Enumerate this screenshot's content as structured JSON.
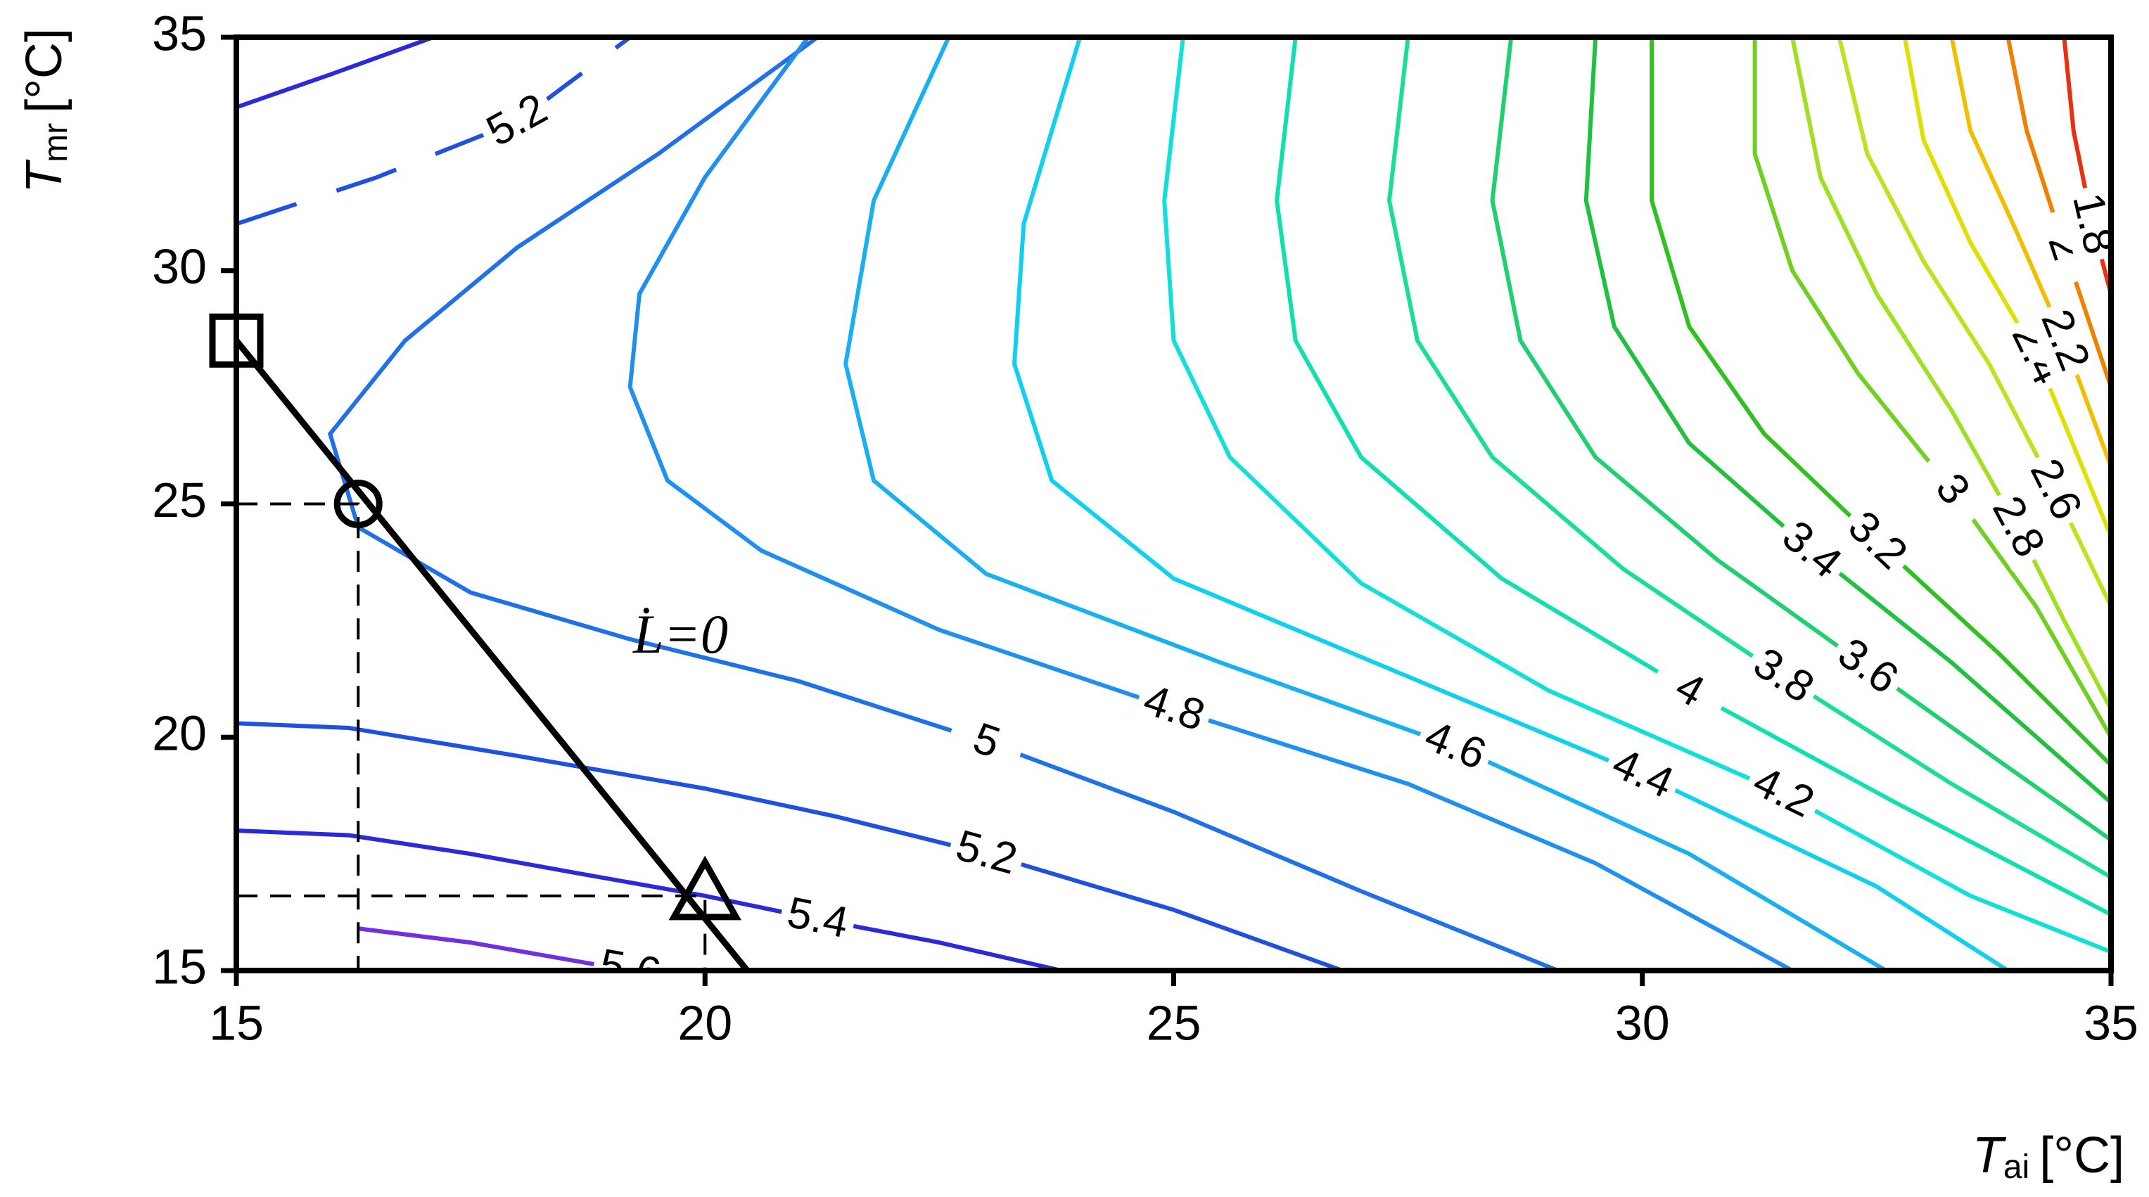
{
  "chart_data": {
    "type": "contour",
    "x_label": {
      "symbol": "T",
      "subscript": "ai",
      "unit": "[°C]"
    },
    "y_label": {
      "symbol": "T",
      "subscript": "mr",
      "unit": "[°C]"
    },
    "xlim": [
      15,
      35
    ],
    "ylim": [
      15,
      35
    ],
    "xticks": [
      15,
      20,
      25,
      30,
      35
    ],
    "yticks": [
      15,
      20,
      25,
      30,
      35
    ],
    "annotation": "L̇=0",
    "contours": [
      {
        "level": 5.6,
        "label": "5.6",
        "color": "#7030e0",
        "x": [
          16.3,
          17.5,
          19.2
        ],
        "y": [
          15.9,
          15.6,
          15
        ]
      },
      {
        "level": 5.4,
        "color": "#2a2ad8",
        "x": [
          15,
          16,
          17.1
        ],
        "y": [
          33.5,
          34.2,
          35
        ]
      },
      {
        "level": 5.4,
        "label": "5.4",
        "color": "#2a2ad8",
        "x": [
          15,
          16.2,
          17.5,
          18.6,
          20,
          21.2,
          22.5,
          23.8
        ],
        "y": [
          18,
          17.9,
          17.5,
          17.1,
          16.6,
          16.1,
          15.6,
          15
        ]
      },
      {
        "level": 5.2,
        "label": "5.2",
        "color": "#2050e0",
        "dashed": true,
        "x": [
          15,
          16.5,
          18,
          19.2
        ],
        "y": [
          31,
          32,
          33.2,
          35
        ]
      },
      {
        "level": 5.2,
        "label": "5.2",
        "color": "#2050e0",
        "x": [
          15,
          16.2,
          18,
          20,
          21.4,
          23,
          25,
          26.8
        ],
        "y": [
          20.3,
          20.2,
          19.6,
          18.9,
          18.3,
          17.5,
          16.3,
          15
        ]
      },
      {
        "level": 5,
        "label": "5",
        "color": "#2070e8",
        "x": [
          21.2,
          19.5,
          18,
          16.8,
          16,
          16.3,
          17.5,
          19.2,
          21,
          23,
          25,
          27,
          29.1
        ],
        "y": [
          35,
          32.5,
          30.5,
          28.5,
          26.5,
          24.5,
          23.1,
          22.1,
          21.2,
          19.9,
          18.4,
          16.7,
          15
        ]
      },
      {
        "level": 4.8,
        "label": "4.8",
        "color": "#2090f0",
        "x": [
          21.1,
          20,
          19.3,
          19.2,
          19.6,
          20.6,
          22.5,
          25,
          27.5,
          29.5,
          31.6
        ],
        "y": [
          35,
          32,
          29.5,
          27.5,
          25.5,
          24,
          22.3,
          20.6,
          19,
          17.3,
          15
        ]
      },
      {
        "level": 4.6,
        "label": "4.6",
        "color": "#18b0f0",
        "x": [
          22.6,
          21.8,
          21.5,
          21.8,
          23,
          25.5,
          28,
          30.5,
          32.6
        ],
        "y": [
          35,
          31.5,
          28,
          25.5,
          23.5,
          21.6,
          19.8,
          17.5,
          15
        ]
      },
      {
        "level": 4.4,
        "label": "4.4",
        "color": "#10d0f0",
        "x": [
          24,
          23.4,
          23.3,
          23.7,
          25,
          27.5,
          30,
          32.5,
          33.9
        ],
        "y": [
          35,
          31,
          28,
          25.5,
          23.4,
          21.3,
          19.2,
          16.8,
          15
        ]
      },
      {
        "level": 4.2,
        "label": "4.2",
        "color": "#10e0d8",
        "x": [
          25.1,
          24.9,
          25,
          25.6,
          27,
          29,
          31.5,
          33.5,
          35
        ],
        "y": [
          35,
          31.5,
          28.5,
          26,
          23.3,
          21,
          18.8,
          16.6,
          15.4
        ]
      },
      {
        "level": 4,
        "label": "4",
        "color": "#10e0b0",
        "x": [
          26.3,
          26.1,
          26.3,
          27,
          28.5,
          30.5,
          32.7,
          35
        ],
        "y": [
          35,
          31.5,
          28.5,
          26,
          23.4,
          21,
          18.6,
          16.2
        ]
      },
      {
        "level": 3.8,
        "label": "3.8",
        "color": "#18e090",
        "x": [
          27.5,
          27.3,
          27.6,
          28.4,
          29.8,
          31.5,
          33.3,
          35
        ],
        "y": [
          35,
          31.5,
          28.5,
          26,
          23.6,
          21.3,
          19,
          17
        ]
      },
      {
        "level": 3.6,
        "label": "3.6",
        "color": "#20d070",
        "x": [
          28.6,
          28.4,
          28.7,
          29.5,
          30.8,
          32.4,
          33.8,
          35
        ],
        "y": [
          35,
          31.5,
          28.5,
          26,
          23.8,
          21.5,
          19.5,
          17.8
        ]
      },
      {
        "level": 3.4,
        "label": "3.4",
        "color": "#20c040",
        "x": [
          29.5,
          29.4,
          29.7,
          30.5,
          31.8,
          33.3,
          35
        ],
        "y": [
          35,
          31.5,
          28.8,
          26.3,
          24,
          21.6,
          18.6
        ]
      },
      {
        "level": 3.2,
        "label": "3.2",
        "color": "#30c020",
        "x": [
          30.1,
          30.1,
          30.5,
          31.3,
          32.5,
          33.8,
          35
        ],
        "y": [
          35,
          31.5,
          28.8,
          26.5,
          24.2,
          21.8,
          19.4
        ]
      },
      {
        "level": 3,
        "label": "3",
        "color": "#70d020",
        "x": [
          31.2,
          31.2,
          31.6,
          32.3,
          33.3,
          34.2,
          35
        ],
        "y": [
          35,
          32.5,
          30,
          27.8,
          25.3,
          22.8,
          20
        ]
      },
      {
        "level": 2.8,
        "label": "2.8",
        "color": "#a0e020",
        "x": [
          31.6,
          31.9,
          32.5,
          33.3,
          34,
          34.5,
          35
        ],
        "y": [
          35,
          32,
          29.5,
          27,
          24.5,
          22.5,
          20.6
        ]
      },
      {
        "level": 2.6,
        "label": "2.6",
        "color": "#c0e020",
        "x": [
          32.1,
          32.4,
          33,
          33.7,
          34.4,
          35
        ],
        "y": [
          35,
          32.5,
          30.2,
          28,
          25.3,
          22.8
        ]
      },
      {
        "level": 2.4,
        "label": "2.4",
        "color": "#e0e000",
        "x": [
          32.8,
          33,
          33.5,
          34.2,
          35
        ],
        "y": [
          35,
          32.8,
          30.6,
          28.2,
          24.3
        ]
      },
      {
        "level": 2.2,
        "label": "2.2",
        "color": "#f0c000",
        "x": [
          33.3,
          33.5,
          34,
          34.5,
          35
        ],
        "y": [
          35,
          33,
          30.8,
          28.5,
          25.8
        ]
      },
      {
        "level": 2,
        "label": "2",
        "color": "#f08000",
        "x": [
          33.9,
          34.1,
          34.5,
          35
        ],
        "y": [
          35,
          33,
          30.5,
          27.5
        ]
      },
      {
        "level": 1.8,
        "label": "1.8",
        "color": "#e83010",
        "x": [
          34.5,
          34.6,
          34.8,
          35
        ],
        "y": [
          35,
          33,
          31,
          29.5
        ]
      }
    ],
    "operating_line": {
      "x": [
        15,
        20.45
      ],
      "y": [
        28.5,
        15
      ]
    },
    "markers": {
      "shapes": [
        "square",
        "circle",
        "triangle"
      ],
      "x": [
        15,
        16.3,
        20
      ],
      "y": [
        28.5,
        25,
        16.6
      ]
    }
  }
}
